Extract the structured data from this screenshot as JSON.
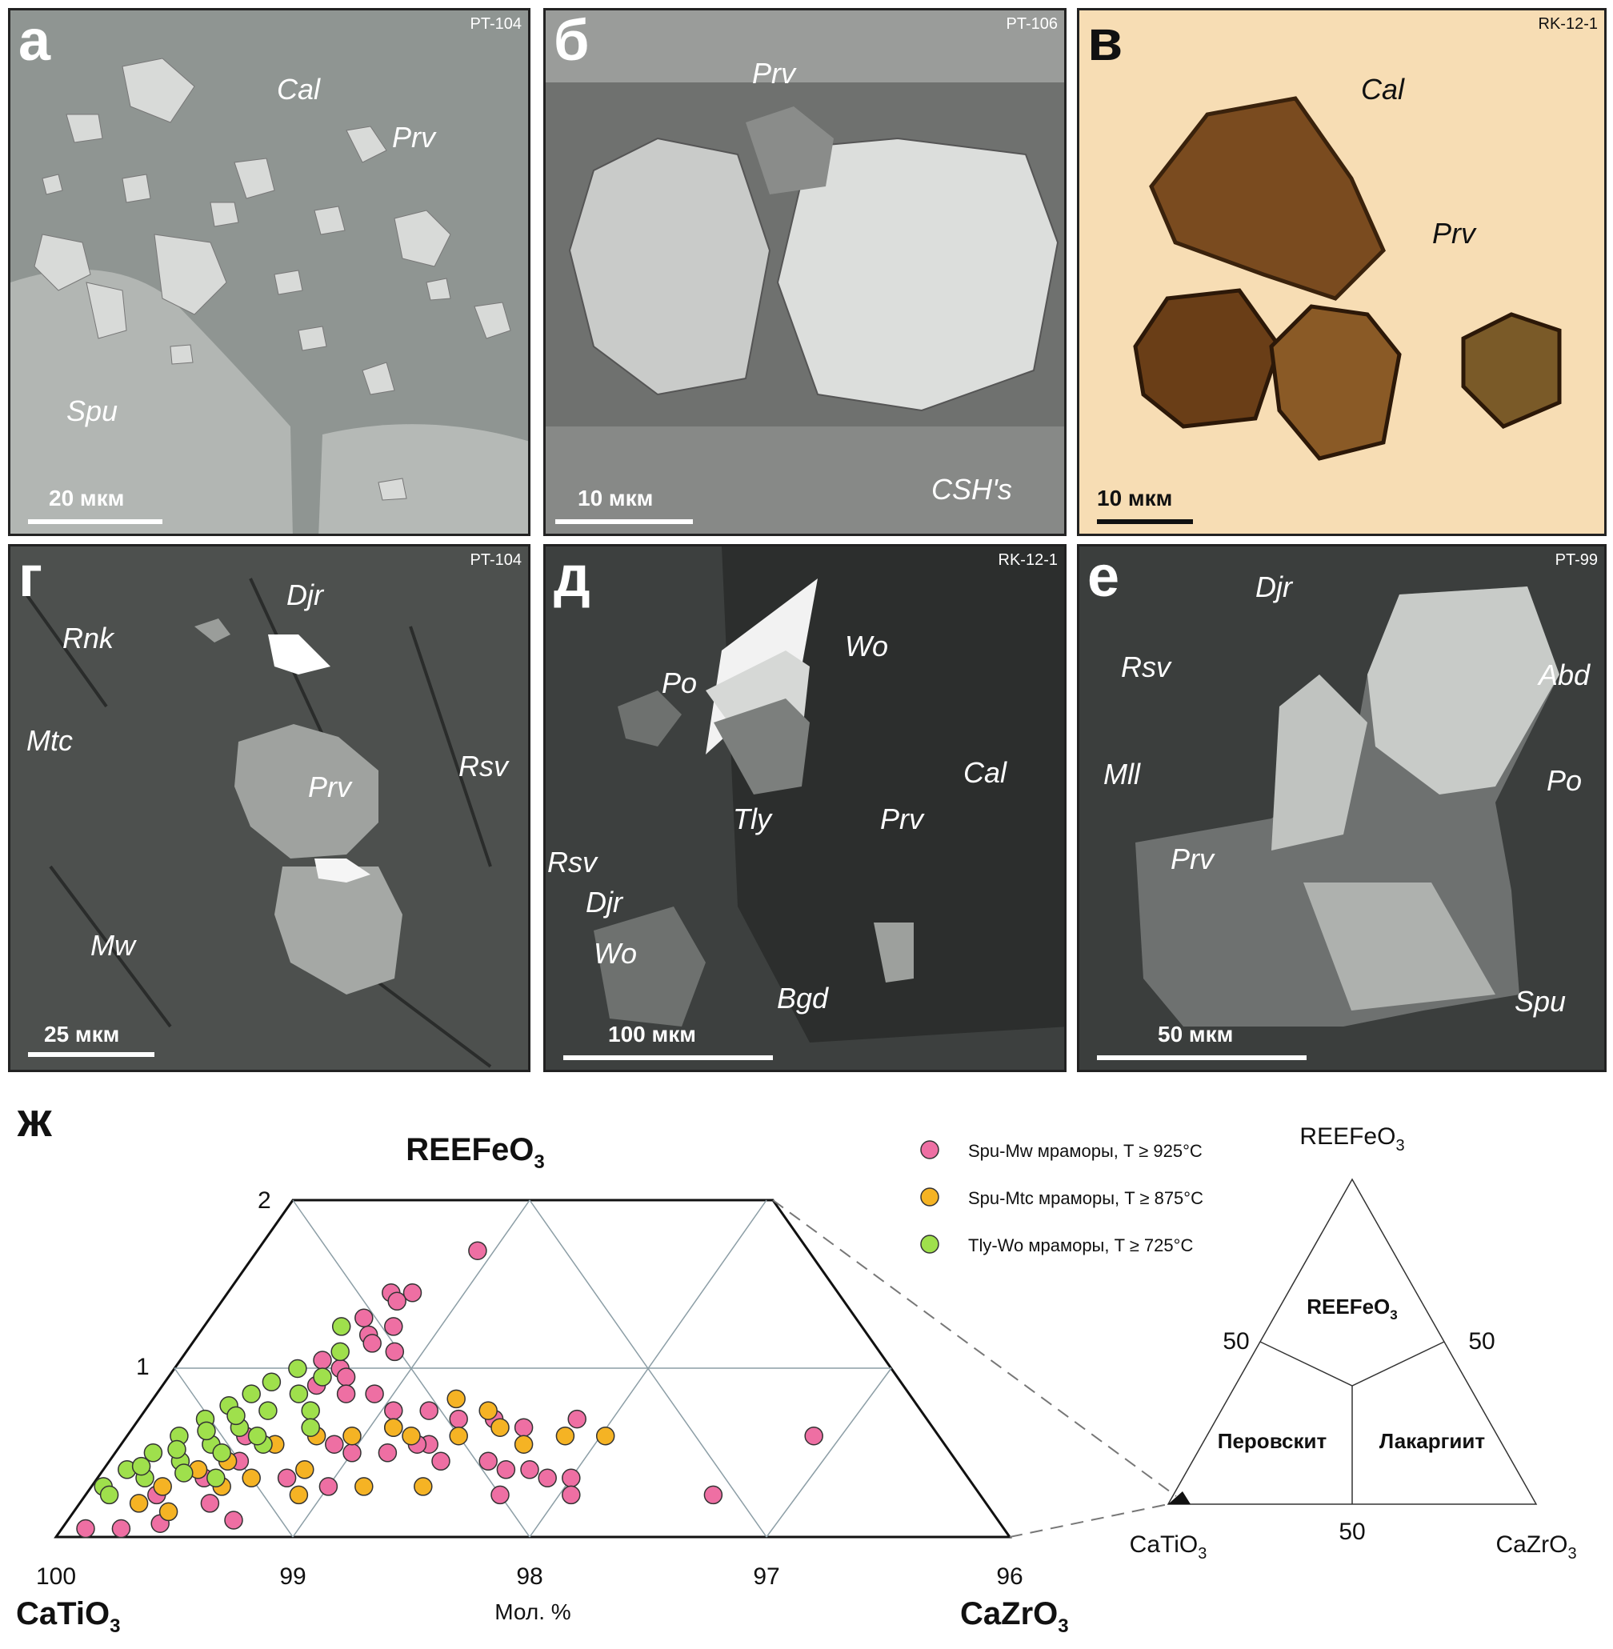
{
  "panels": [
    {
      "label": "а",
      "sample": "PT-104",
      "scale": "20 мкм",
      "minerals": [
        "Cal",
        "Prv",
        "Spu"
      ]
    },
    {
      "label": "б",
      "sample": "PT-106",
      "scale": "10 мкм",
      "minerals": [
        "Prv",
        "CSH's"
      ]
    },
    {
      "label": "в",
      "sample": "RK-12-1",
      "scale": "10 мкм",
      "minerals": [
        "Cal",
        "Prv"
      ]
    },
    {
      "label": "г",
      "sample": "PT-104",
      "scale": "25 мкм",
      "minerals": [
        "Djr",
        "Rnk",
        "Mtc",
        "Prv",
        "Rsv",
        "Mw"
      ]
    },
    {
      "label": "д",
      "sample": "RK-12-1",
      "scale": "100 мкм",
      "minerals": [
        "Po",
        "Wo",
        "Cal",
        "Prv",
        "Tly",
        "Rsv",
        "Djr",
        "Wo",
        "Bgd"
      ]
    },
    {
      "label": "е",
      "sample": "PT-99",
      "scale": "50 мкм",
      "minerals": [
        "Djr",
        "Rsv",
        "Abd",
        "Mll",
        "Po",
        "Prv",
        "Spu"
      ]
    }
  ],
  "diagram": {
    "label": "ж",
    "apex_top": "REEFeO",
    "apex_top_sub": "3",
    "apex_left": "CaTiO",
    "apex_left_sub": "3",
    "apex_right": "CaZrO",
    "apex_right_sub": "3",
    "axis_label": "Мол. %",
    "bottom_ticks": [
      "100",
      "99",
      "98",
      "97",
      "96"
    ],
    "left_ticks": [
      "2",
      "1"
    ],
    "legend": [
      {
        "label": "Spu-Mw мраморы, T ≥ 925°C",
        "color": "#ee6fa3"
      },
      {
        "label": "Spu-Mtc мраморы, T ≥ 875°C",
        "color": "#f5b324"
      },
      {
        "label": "Tly-Wo мраморы, T ≥ 725°C",
        "color": "#9fe04c"
      }
    ],
    "inset": {
      "top": "REEFeO",
      "top_sub": "3",
      "left": "CaTiO",
      "left_sub": "3",
      "right": "CaZrO",
      "right_sub": "3",
      "field_top": "REEFeO",
      "field_top_sub": "3",
      "field_left": "Перовскит",
      "field_right": "Лакаргиит",
      "tick_left": "50",
      "tick_right": "50",
      "tick_bottom": "50"
    }
  },
  "chart_data": {
    "type": "scatter",
    "axes": {
      "x_label": "Мол. %",
      "x_range": [
        100,
        96
      ],
      "y_range": [
        0,
        2
      ]
    },
    "series": [
      {
        "name": "Spu-Mw мраморы, T ≥ 925°C",
        "color": "#ee6fa3",
        "points": [
          [
            99.07,
            1.7
          ],
          [
            99.31,
            1.45
          ],
          [
            99.22,
            1.45
          ],
          [
            99.26,
            1.4
          ],
          [
            99.35,
            1.3
          ],
          [
            99.2,
            1.25
          ],
          [
            99.28,
            1.2
          ],
          [
            99.24,
            1.15
          ],
          [
            99.12,
            1.1
          ],
          [
            99.4,
            1.05
          ],
          [
            99.3,
            1.0
          ],
          [
            99.25,
            0.95
          ],
          [
            99.35,
            0.9
          ],
          [
            99.2,
            0.85
          ],
          [
            99.08,
            0.85
          ],
          [
            98.95,
            0.75
          ],
          [
            98.8,
            0.75
          ],
          [
            98.65,
            0.7
          ],
          [
            98.5,
            0.7
          ],
          [
            98.35,
            0.65
          ],
          [
            98.15,
            0.7
          ],
          [
            99.1,
            0.55
          ],
          [
            99.0,
            0.5
          ],
          [
            98.85,
            0.5
          ],
          [
            98.7,
            0.55
          ],
          [
            98.6,
            0.45
          ],
          [
            98.4,
            0.45
          ],
          [
            98.3,
            0.4
          ],
          [
            98.2,
            0.4
          ],
          [
            98.1,
            0.35
          ],
          [
            98.0,
            0.35
          ],
          [
            97.95,
            0.25
          ],
          [
            98.25,
            0.25
          ],
          [
            97.1,
            0.6
          ],
          [
            97.35,
            0.25
          ],
          [
            99.7,
            0.25
          ],
          [
            99.45,
            0.2
          ],
          [
            99.3,
            0.1
          ],
          [
            99.6,
            0.08
          ],
          [
            99.75,
            0.05
          ],
          [
            99.9,
            0.05
          ],
          [
            99.5,
            0.6
          ],
          [
            99.45,
            0.45
          ],
          [
            99.55,
            0.35
          ],
          [
            99.2,
            0.35
          ],
          [
            99.0,
            0.3
          ],
          [
            98.9,
            0.65
          ],
          [
            98.75,
            0.55
          ]
        ]
      },
      {
        "name": "Spu-Mtc мраморы, T ≥ 875°C",
        "color": "#f5b324",
        "points": [
          [
            98.72,
            0.82
          ],
          [
            98.55,
            0.75
          ],
          [
            98.45,
            0.65
          ],
          [
            98.6,
            0.6
          ],
          [
            98.8,
            0.6
          ],
          [
            98.9,
            0.65
          ],
          [
            99.05,
            0.6
          ],
          [
            99.2,
            0.6
          ],
          [
            99.35,
            0.55
          ],
          [
            99.5,
            0.45
          ],
          [
            99.6,
            0.4
          ],
          [
            99.7,
            0.3
          ],
          [
            99.75,
            0.2
          ],
          [
            99.6,
            0.15
          ],
          [
            99.45,
            0.3
          ],
          [
            99.35,
            0.35
          ],
          [
            99.15,
            0.4
          ],
          [
            99.1,
            0.25
          ],
          [
            98.85,
            0.3
          ],
          [
            98.6,
            0.3
          ],
          [
            98.3,
            0.55
          ],
          [
            98.15,
            0.6
          ],
          [
            97.98,
            0.6
          ]
        ]
      },
      {
        "name": "Tly-Wo мраморы, T ≥ 725°C",
        "color": "#9fe04c",
        "points": [
          [
            99.42,
            1.25
          ],
          [
            99.35,
            1.1
          ],
          [
            99.48,
            1.0
          ],
          [
            99.55,
            0.92
          ],
          [
            99.6,
            0.85
          ],
          [
            99.66,
            0.78
          ],
          [
            99.72,
            0.7
          ],
          [
            99.78,
            0.6
          ],
          [
            99.84,
            0.5
          ],
          [
            99.9,
            0.4
          ],
          [
            99.95,
            0.3
          ],
          [
            99.9,
            0.25
          ],
          [
            99.8,
            0.35
          ],
          [
            99.7,
            0.45
          ],
          [
            99.62,
            0.55
          ],
          [
            99.55,
            0.65
          ],
          [
            99.48,
            0.75
          ],
          [
            99.4,
            0.85
          ],
          [
            99.35,
            0.95
          ],
          [
            99.3,
            0.75
          ],
          [
            99.25,
            0.65
          ],
          [
            99.4,
            0.55
          ],
          [
            99.55,
            0.5
          ],
          [
            99.65,
            0.38
          ],
          [
            99.5,
            0.35
          ],
          [
            99.45,
            0.6
          ],
          [
            99.6,
            0.72
          ],
          [
            99.68,
            0.63
          ],
          [
            99.75,
            0.52
          ],
          [
            99.85,
            0.42
          ]
        ]
      }
    ]
  }
}
